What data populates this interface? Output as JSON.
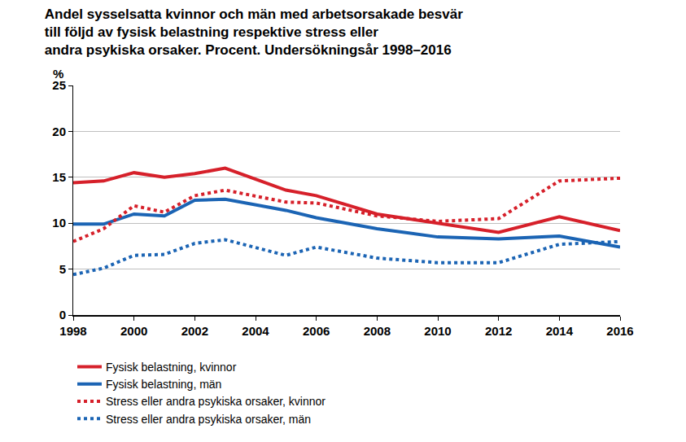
{
  "chart_data": {
    "type": "line",
    "title": "Andel sysselsatta kvinnor och män med arbetsorsakade besvär\ntill följd av fysisk belastning respektive stress eller\nandra psykiska orsaker. Procent. Undersökningsår 1998–2016",
    "ylabel": "%",
    "x": [
      1998,
      1999,
      2000,
      2001,
      2002,
      2003,
      2005,
      2006,
      2008,
      2010,
      2012,
      2014,
      2016
    ],
    "series": [
      {
        "name": "Fysisk belastning, kvinnor",
        "color": "#d6202a",
        "line_style": "solid",
        "values": [
          14.4,
          14.6,
          15.5,
          15.0,
          15.4,
          16.0,
          13.6,
          13.0,
          11.0,
          10.0,
          9.0,
          10.7,
          9.2
        ]
      },
      {
        "name": "Fysisk belastning, män",
        "color": "#1b64b4",
        "line_style": "solid",
        "values": [
          9.9,
          9.9,
          11.0,
          10.8,
          12.5,
          12.6,
          11.4,
          10.6,
          9.4,
          8.5,
          8.3,
          8.6,
          7.4
        ]
      },
      {
        "name": "Stress eller andra psykiska orsaker, kvinnor",
        "color": "#d6202a",
        "line_style": "dotted",
        "values": [
          8.0,
          9.4,
          11.9,
          11.2,
          13.0,
          13.6,
          12.3,
          12.2,
          10.8,
          10.2,
          10.5,
          14.6,
          14.9
        ]
      },
      {
        "name": "Stress eller andra psykiska orsaker, män",
        "color": "#1b64b4",
        "line_style": "dotted",
        "values": [
          4.4,
          5.1,
          6.5,
          6.6,
          7.8,
          8.2,
          6.5,
          7.4,
          6.2,
          5.7,
          5.7,
          7.7,
          8.0
        ]
      }
    ],
    "xlim": [
      1998,
      2016
    ],
    "xticks": [
      1998,
      2000,
      2002,
      2004,
      2006,
      2008,
      2010,
      2012,
      2014,
      2016
    ],
    "ylim": [
      0,
      25
    ],
    "yticks": [
      0,
      5,
      10,
      15,
      20,
      25
    ],
    "grid": true,
    "legend": "bottom"
  }
}
